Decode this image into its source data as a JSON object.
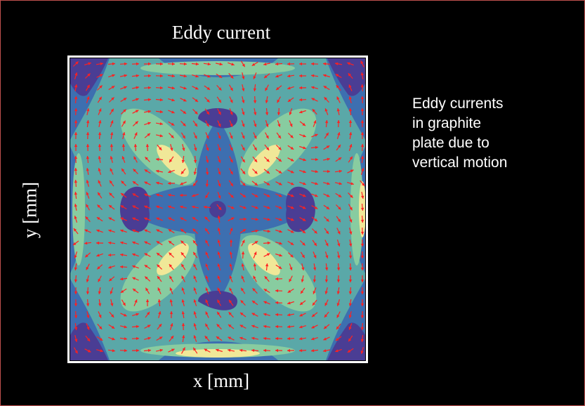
{
  "figure": {
    "title": "Eddy current",
    "xlabel": "x [mm]",
    "ylabel": "y [mm]"
  },
  "caption": {
    "lines": [
      "Eddy currents",
      "in graphite",
      "plate due to",
      "vertical motion"
    ]
  },
  "colors": {
    "background": "#000000",
    "frame_border": "#c0504d",
    "arrow": "#ff2020",
    "colormap": [
      "#4a3d94",
      "#3d6fb0",
      "#5aa8a8",
      "#88cca0",
      "#f0e898"
    ]
  }
}
